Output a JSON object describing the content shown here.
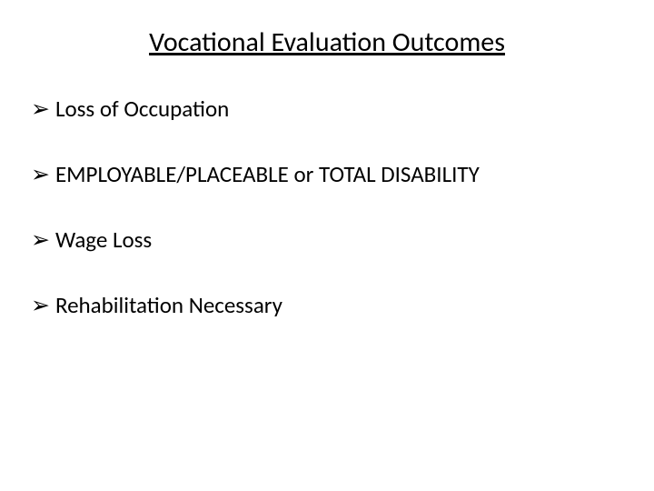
{
  "title": "Vocational Evaluation Outcomes",
  "bullets": [
    {
      "text": "Loss of Occupation"
    },
    {
      "text": "EMPLOYABLE/PLACEABLE or TOTAL DISABILITY"
    },
    {
      "text": "Wage Loss"
    },
    {
      "text": "Rehabilitation Necessary"
    }
  ],
  "style": {
    "background_color": "#ffffff",
    "text_color": "#000000",
    "title_fontsize": 30,
    "bullet_fontsize": 25,
    "bullet_marker": "➢"
  }
}
